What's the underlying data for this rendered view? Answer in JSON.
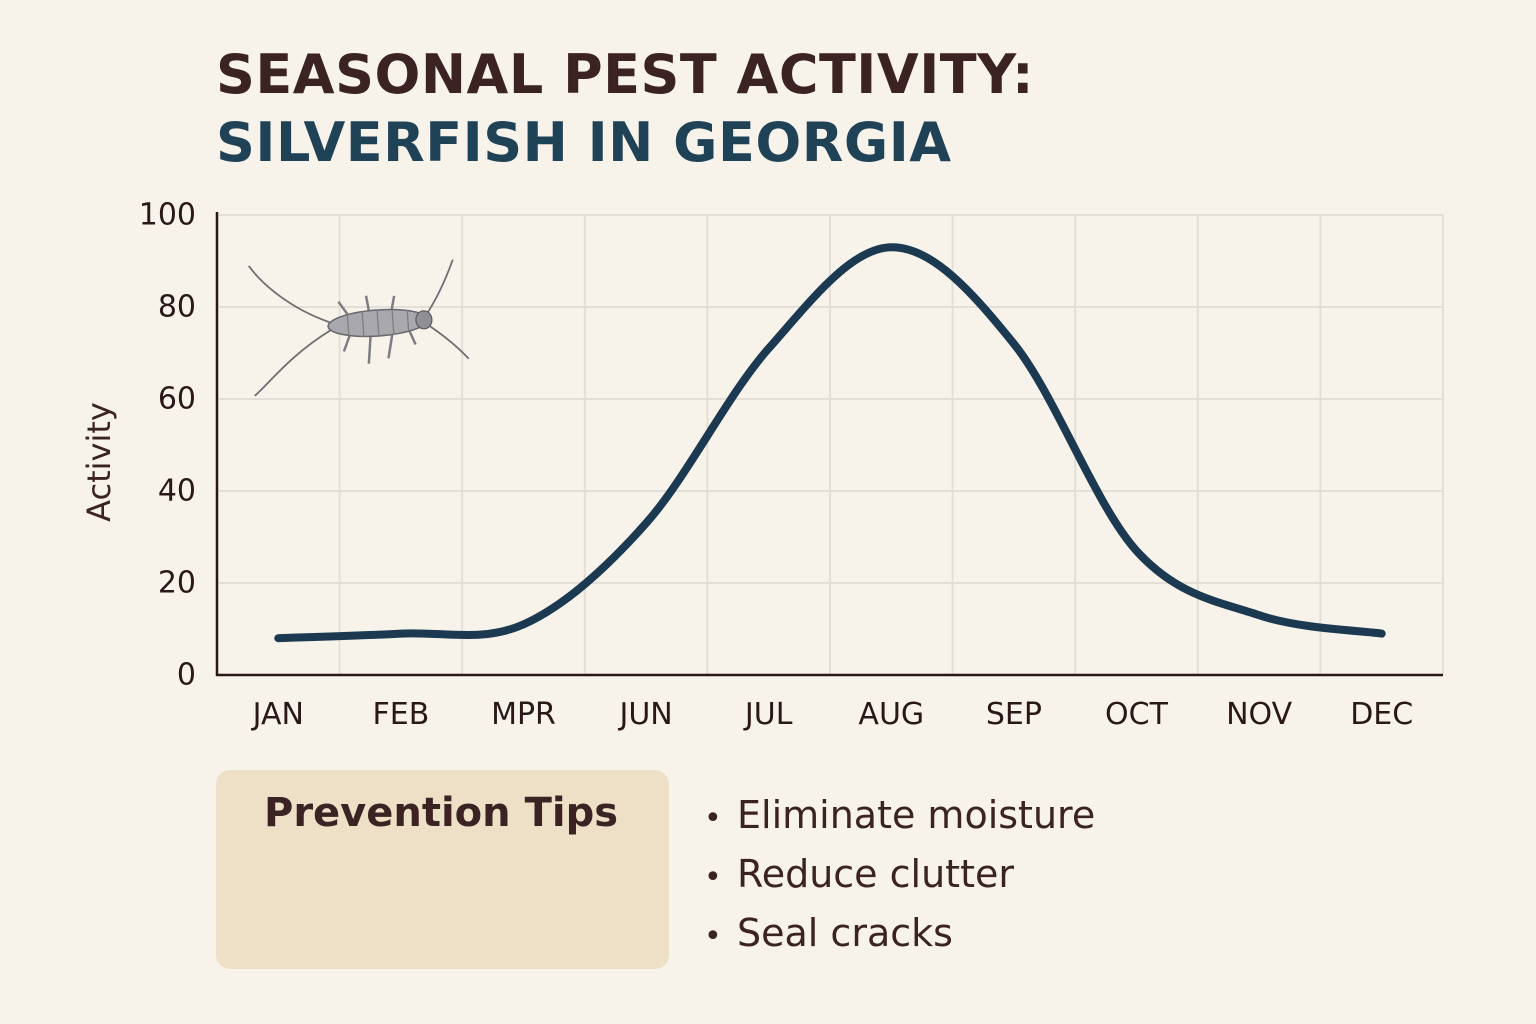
{
  "title": {
    "line1": "SEASONAL PEST ACTIVITY:",
    "line2": "SILVERFISH IN GEORGIA"
  },
  "chart_data": {
    "type": "line",
    "categories": [
      "JAN",
      "FEB",
      "MPR",
      "JUN",
      "JUL",
      "AUG",
      "SEP",
      "OCT",
      "NOV",
      "DEC"
    ],
    "series": [
      {
        "values": [
          8,
          9,
          11,
          33,
          71,
          93,
          72,
          27,
          13,
          9
        ]
      }
    ],
    "xlabel": "",
    "ylabel": "Activity",
    "ylim": [
      0,
      100
    ],
    "yticks": [
      0,
      20,
      40,
      60,
      80,
      100
    ],
    "grid": true,
    "line_color": "#1b3a51",
    "illustration": "silverfish-icon"
  },
  "prevention": {
    "heading": "Prevention Tips",
    "items": [
      "Eliminate moisture",
      "Reduce clutter",
      "Seal cracks"
    ]
  },
  "colors": {
    "background": "#f8f3ea",
    "title_dark": "#3b2323",
    "title_accent": "#1f4257",
    "tips_box": "#ede0c6"
  }
}
